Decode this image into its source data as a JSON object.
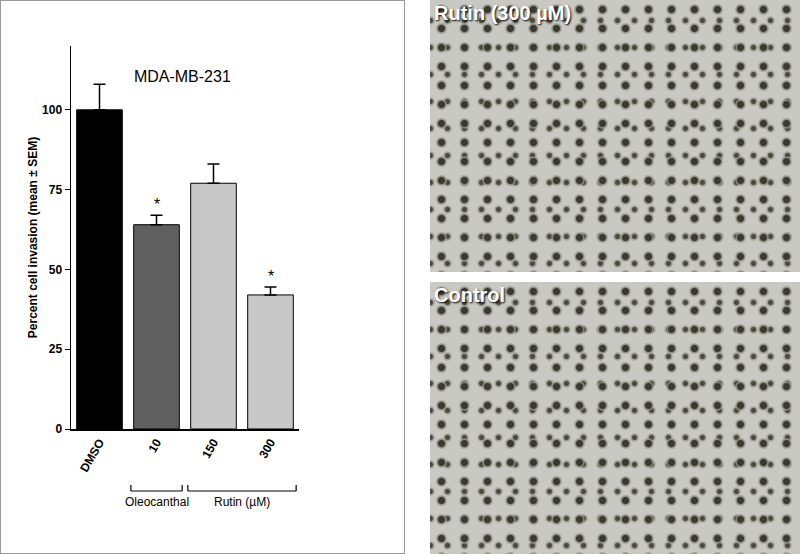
{
  "chart_data": {
    "type": "bar",
    "title": "MDA-MB-231",
    "y_label": "Percent cell invasion (mean ± SEM)",
    "categories": [
      "DMSO",
      "10",
      "150",
      "300"
    ],
    "values": [
      100,
      64,
      77,
      42
    ],
    "errors": [
      8,
      3,
      6,
      2.5
    ],
    "colors": [
      "#000000",
      "#606060",
      "#c8c8c8",
      "#c8c8c8"
    ],
    "ylim": [
      0,
      120
    ],
    "yticks": [
      0,
      25,
      50,
      75,
      100
    ],
    "grid": false,
    "annotations": [
      {
        "category": "10",
        "text": "*"
      },
      {
        "category": "300",
        "text": "*"
      }
    ],
    "groups": [
      {
        "label": "Oleocanthal",
        "categories": [
          "10"
        ]
      },
      {
        "label": "Rutin (µM)",
        "categories": [
          "150",
          "300"
        ]
      }
    ]
  },
  "panels": [
    {
      "label": "Rutin (300 µM)"
    },
    {
      "label": "Control"
    }
  ]
}
